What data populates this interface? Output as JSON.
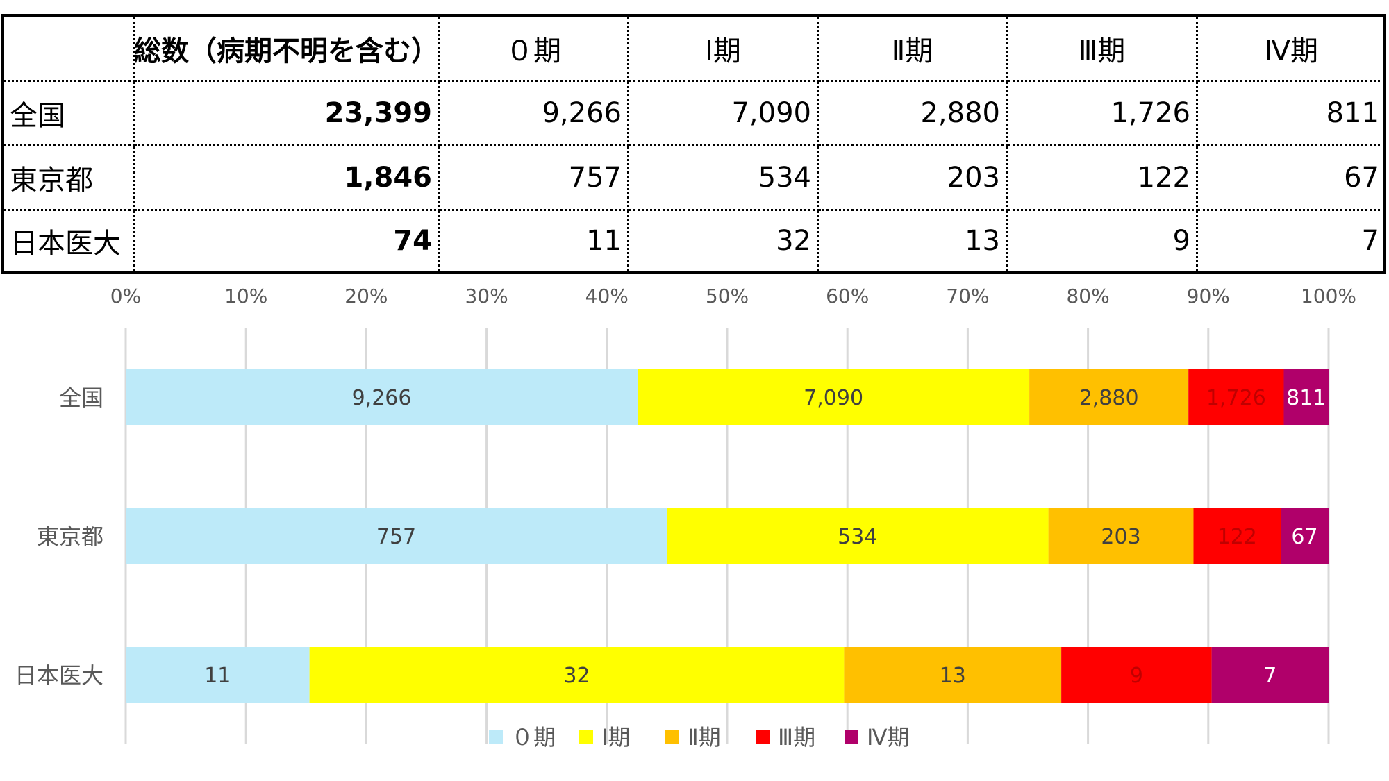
{
  "table": {
    "headers": [
      "",
      "総数（病期不明を含む）",
      "０期",
      "Ⅰ期",
      "Ⅱ期",
      "Ⅲ期",
      "Ⅳ期"
    ],
    "rows": [
      {
        "label": "全国",
        "total": "23,399",
        "stages": [
          "9,266",
          "7,090",
          "2,880",
          "1,726",
          "811"
        ]
      },
      {
        "label": "東京都",
        "total": "1,846",
        "stages": [
          "757",
          "534",
          "203",
          "122",
          "67"
        ]
      },
      {
        "label": "日本医大",
        "total": "74",
        "stages": [
          "11",
          "32",
          "13",
          "9",
          "7"
        ]
      }
    ]
  },
  "chart_data": {
    "type": "bar",
    "orientation": "horizontal",
    "stacked": "percent",
    "categories": [
      "全国",
      "東京都",
      "日本医大"
    ],
    "series": [
      {
        "name": "０期",
        "color": "#BDEAF9",
        "label_color": "#404040",
        "values": [
          9266,
          757,
          11
        ]
      },
      {
        "name": "Ⅰ期",
        "color": "#FFFF00",
        "label_color": "#404040",
        "values": [
          7090,
          534,
          32
        ]
      },
      {
        "name": "Ⅱ期",
        "color": "#FFC000",
        "label_color": "#404040",
        "values": [
          2880,
          203,
          13
        ]
      },
      {
        "name": "Ⅲ期",
        "color": "#FF0000",
        "label_color": "#C00000",
        "values": [
          1726,
          122,
          9
        ]
      },
      {
        "name": "Ⅳ期",
        "color": "#B0006A",
        "label_color": "#FFFFFF",
        "values": [
          811,
          67,
          7
        ]
      }
    ],
    "value_labels": [
      [
        "9,266",
        "757",
        "11"
      ],
      [
        "7,090",
        "534",
        "32"
      ],
      [
        "2,880",
        "203",
        "13"
      ],
      [
        "1,726",
        "122",
        "9"
      ],
      [
        "811",
        "67",
        "7"
      ]
    ],
    "xticks": [
      "0%",
      "10%",
      "20%",
      "30%",
      "40%",
      "50%",
      "60%",
      "70%",
      "80%",
      "90%",
      "100%"
    ],
    "xlim": [
      0,
      1
    ],
    "grid": true,
    "xaxis_position": "top",
    "legend": "bottom"
  }
}
